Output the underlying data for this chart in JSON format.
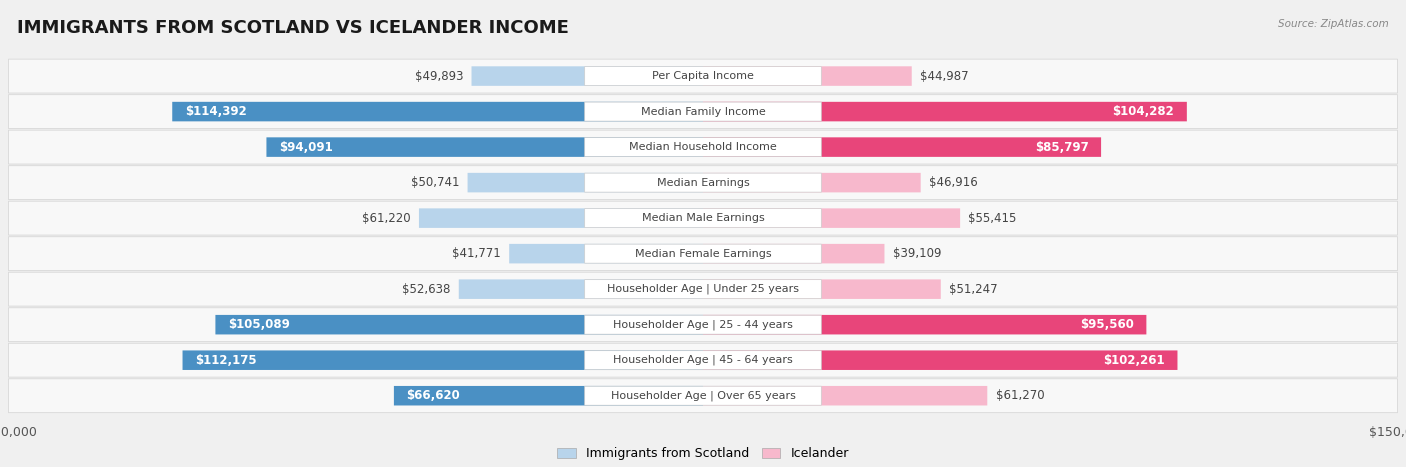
{
  "title": "IMMIGRANTS FROM SCOTLAND VS ICELANDER INCOME",
  "source": "Source: ZipAtlas.com",
  "categories": [
    "Per Capita Income",
    "Median Family Income",
    "Median Household Income",
    "Median Earnings",
    "Median Male Earnings",
    "Median Female Earnings",
    "Householder Age | Under 25 years",
    "Householder Age | 25 - 44 years",
    "Householder Age | 45 - 64 years",
    "Householder Age | Over 65 years"
  ],
  "scotland_values": [
    49893,
    114392,
    94091,
    50741,
    61220,
    41771,
    52638,
    105089,
    112175,
    66620
  ],
  "icelander_values": [
    44987,
    104282,
    85797,
    46916,
    55415,
    39109,
    51247,
    95560,
    102261,
    61270
  ],
  "scotland_light": "#b8d4eb",
  "scotland_dark": "#4a90c4",
  "icelander_light": "#f7b8cc",
  "icelander_dark": "#e8457a",
  "max_value": 150000,
  "large_threshold": 65000,
  "background_color": "#f0f0f0",
  "row_bg_color": "#fafafa",
  "row_alt_color": "#f0f0f0",
  "title_fontsize": 13,
  "val_fontsize": 8.5,
  "cat_fontsize": 8,
  "legend_scotland": "Immigrants from Scotland",
  "legend_icelander": "Icelander"
}
